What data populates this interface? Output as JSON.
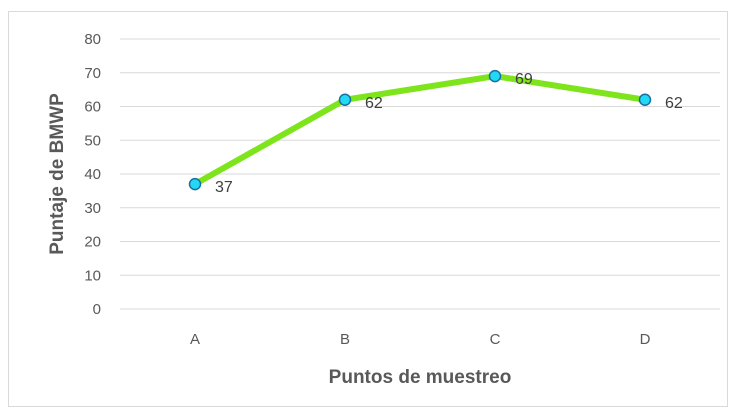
{
  "chart_data": {
    "type": "line",
    "categories": [
      "A",
      "B",
      "C",
      "D"
    ],
    "series": [
      {
        "values": [
          37,
          62,
          69,
          62
        ]
      }
    ],
    "data_labels": [
      "37",
      "62",
      "69",
      "62"
    ],
    "xlabel": "Puntos de muestreo",
    "ylabel": "Puntaje de BMWP",
    "ylim": [
      0,
      80
    ],
    "yticks": [
      0,
      10,
      20,
      30,
      40,
      50,
      60,
      70,
      80
    ],
    "grid": true,
    "line_color": "#7ee51d",
    "marker_fill": "#22d8f5",
    "marker_stroke": "#1a6fa0",
    "grid_color": "#d9d9d9"
  }
}
